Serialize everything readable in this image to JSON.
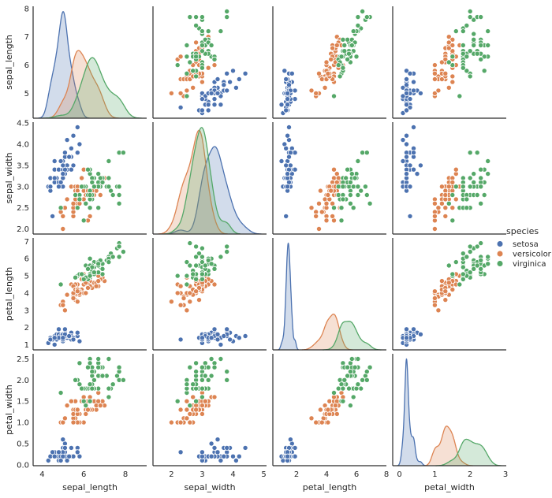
{
  "chart_data": {
    "type": "scatter",
    "variant": "pairplot",
    "diagonal": "kde",
    "grid": "off",
    "background": "#ffffff",
    "spine_color": "#2b2b2b",
    "variables": [
      {
        "key": "sepal_length",
        "label": "sepal_length",
        "xlim": [
          3.57,
          9.02
        ],
        "ylim": [
          4.12,
          8.08
        ],
        "xticks": [
          "4",
          "6",
          "8"
        ],
        "yticks": [
          "5",
          "6",
          "7",
          "8"
        ]
      },
      {
        "key": "sepal_width",
        "label": "sepal_width",
        "xlim": [
          1.4,
          5.09
        ],
        "ylim": [
          1.88,
          4.52
        ],
        "xticks": [
          "2",
          "3",
          "4",
          "5"
        ],
        "yticks": [
          "2.0",
          "2.5",
          "3.0",
          "3.5",
          "4.0",
          "4.5"
        ]
      },
      {
        "key": "petal_length",
        "label": "petal_length",
        "xlim": [
          0.42,
          8.0
        ],
        "ylim": [
          0.7,
          7.2
        ],
        "xticks": [
          "2",
          "4",
          "6",
          "8"
        ],
        "yticks": [
          "1",
          "2",
          "3",
          "4",
          "5",
          "6",
          "7"
        ]
      },
      {
        "key": "petal_width",
        "label": "petal_width",
        "xlim": [
          -0.19,
          3.02
        ],
        "ylim": [
          -0.02,
          2.62
        ],
        "xticks": [
          "0",
          "1",
          "2",
          "3"
        ],
        "yticks": [
          "0.0",
          "0.5",
          "1.0",
          "1.5",
          "2.0",
          "2.5"
        ]
      }
    ],
    "legend": {
      "title": "species",
      "position": "right",
      "entries": [
        {
          "label": "setosa",
          "color": "#4c72b0"
        },
        {
          "label": "versicolor",
          "color": "#dd8452"
        },
        {
          "label": "virginica",
          "color": "#55a868"
        }
      ]
    },
    "series": [
      {
        "name": "setosa",
        "color": "#4c72b0",
        "rows": [
          [
            5.1,
            3.5,
            1.4,
            0.2
          ],
          [
            4.9,
            3.0,
            1.4,
            0.2
          ],
          [
            4.7,
            3.2,
            1.3,
            0.2
          ],
          [
            4.6,
            3.1,
            1.5,
            0.2
          ],
          [
            5.0,
            3.6,
            1.4,
            0.2
          ],
          [
            5.4,
            3.9,
            1.7,
            0.4
          ],
          [
            4.6,
            3.4,
            1.4,
            0.3
          ],
          [
            5.0,
            3.4,
            1.5,
            0.2
          ],
          [
            4.4,
            2.9,
            1.4,
            0.2
          ],
          [
            4.9,
            3.1,
            1.5,
            0.1
          ],
          [
            5.4,
            3.7,
            1.5,
            0.2
          ],
          [
            4.8,
            3.4,
            1.6,
            0.2
          ],
          [
            4.8,
            3.0,
            1.4,
            0.1
          ],
          [
            4.3,
            3.0,
            1.1,
            0.1
          ],
          [
            5.8,
            4.0,
            1.2,
            0.2
          ],
          [
            5.7,
            4.4,
            1.5,
            0.4
          ],
          [
            5.4,
            3.9,
            1.3,
            0.4
          ],
          [
            5.1,
            3.5,
            1.4,
            0.3
          ],
          [
            5.7,
            3.8,
            1.7,
            0.3
          ],
          [
            5.1,
            3.8,
            1.5,
            0.3
          ],
          [
            5.4,
            3.4,
            1.7,
            0.2
          ],
          [
            5.1,
            3.7,
            1.5,
            0.4
          ],
          [
            4.6,
            3.6,
            1.0,
            0.2
          ],
          [
            5.1,
            3.3,
            1.7,
            0.5
          ],
          [
            4.8,
            3.4,
            1.9,
            0.2
          ],
          [
            5.0,
            3.0,
            1.6,
            0.2
          ],
          [
            5.0,
            3.4,
            1.6,
            0.4
          ],
          [
            5.2,
            3.5,
            1.5,
            0.2
          ],
          [
            5.2,
            3.4,
            1.4,
            0.2
          ],
          [
            4.7,
            3.2,
            1.6,
            0.2
          ],
          [
            4.8,
            3.1,
            1.6,
            0.2
          ],
          [
            5.4,
            3.4,
            1.5,
            0.4
          ],
          [
            5.2,
            4.1,
            1.5,
            0.1
          ],
          [
            5.5,
            4.2,
            1.4,
            0.2
          ],
          [
            4.9,
            3.1,
            1.5,
            0.2
          ],
          [
            5.0,
            3.2,
            1.2,
            0.2
          ],
          [
            5.5,
            3.5,
            1.3,
            0.2
          ],
          [
            4.9,
            3.6,
            1.4,
            0.1
          ],
          [
            4.4,
            3.0,
            1.3,
            0.2
          ],
          [
            5.1,
            3.4,
            1.5,
            0.2
          ],
          [
            5.0,
            3.5,
            1.3,
            0.3
          ],
          [
            4.5,
            2.3,
            1.3,
            0.3
          ],
          [
            4.4,
            3.2,
            1.3,
            0.2
          ],
          [
            5.0,
            3.5,
            1.6,
            0.6
          ],
          [
            5.1,
            3.8,
            1.9,
            0.4
          ],
          [
            4.8,
            3.0,
            1.4,
            0.3
          ],
          [
            5.1,
            3.8,
            1.6,
            0.2
          ],
          [
            4.6,
            3.2,
            1.4,
            0.2
          ],
          [
            5.3,
            3.7,
            1.5,
            0.2
          ],
          [
            5.0,
            3.3,
            1.4,
            0.2
          ]
        ]
      },
      {
        "name": "versicolor",
        "color": "#dd8452",
        "rows": [
          [
            7.0,
            3.2,
            4.7,
            1.4
          ],
          [
            6.4,
            3.2,
            4.5,
            1.5
          ],
          [
            6.9,
            3.1,
            4.9,
            1.5
          ],
          [
            5.5,
            2.3,
            4.0,
            1.3
          ],
          [
            6.5,
            2.8,
            4.6,
            1.5
          ],
          [
            5.7,
            2.8,
            4.5,
            1.3
          ],
          [
            6.3,
            3.3,
            4.7,
            1.6
          ],
          [
            4.9,
            2.4,
            3.3,
            1.0
          ],
          [
            6.6,
            2.9,
            4.6,
            1.3
          ],
          [
            5.2,
            2.7,
            3.9,
            1.4
          ],
          [
            5.0,
            2.0,
            3.5,
            1.0
          ],
          [
            5.9,
            3.0,
            4.2,
            1.5
          ],
          [
            6.0,
            2.2,
            4.0,
            1.0
          ],
          [
            6.1,
            2.9,
            4.7,
            1.4
          ],
          [
            5.6,
            2.9,
            3.6,
            1.3
          ],
          [
            6.7,
            3.1,
            4.4,
            1.4
          ],
          [
            5.6,
            3.0,
            4.5,
            1.5
          ],
          [
            5.8,
            2.7,
            4.1,
            1.0
          ],
          [
            6.2,
            2.2,
            4.5,
            1.5
          ],
          [
            5.6,
            2.5,
            3.9,
            1.1
          ],
          [
            5.9,
            3.2,
            4.8,
            1.8
          ],
          [
            6.1,
            2.8,
            4.0,
            1.3
          ],
          [
            6.3,
            2.5,
            4.9,
            1.5
          ],
          [
            6.1,
            2.8,
            4.7,
            1.2
          ],
          [
            6.4,
            2.9,
            4.3,
            1.3
          ],
          [
            6.6,
            3.0,
            4.4,
            1.4
          ],
          [
            6.8,
            2.8,
            4.8,
            1.4
          ],
          [
            6.7,
            3.0,
            5.0,
            1.7
          ],
          [
            6.0,
            2.9,
            4.5,
            1.5
          ],
          [
            5.7,
            2.6,
            3.5,
            1.0
          ],
          [
            5.5,
            2.4,
            3.8,
            1.1
          ],
          [
            5.5,
            2.4,
            3.7,
            1.0
          ],
          [
            5.8,
            2.7,
            3.9,
            1.2
          ],
          [
            6.0,
            2.7,
            5.1,
            1.6
          ],
          [
            5.4,
            3.0,
            4.5,
            1.5
          ],
          [
            6.0,
            3.4,
            4.5,
            1.6
          ],
          [
            6.7,
            3.1,
            4.7,
            1.5
          ],
          [
            6.3,
            2.3,
            4.4,
            1.3
          ],
          [
            5.6,
            3.0,
            4.1,
            1.3
          ],
          [
            5.5,
            2.5,
            4.0,
            1.3
          ],
          [
            5.5,
            2.6,
            4.4,
            1.2
          ],
          [
            6.1,
            3.0,
            4.6,
            1.4
          ],
          [
            5.8,
            2.6,
            4.0,
            1.2
          ],
          [
            5.0,
            2.3,
            3.3,
            1.0
          ],
          [
            5.6,
            2.7,
            4.2,
            1.3
          ],
          [
            5.7,
            3.0,
            4.2,
            1.2
          ],
          [
            5.7,
            2.9,
            4.2,
            1.3
          ],
          [
            6.2,
            2.9,
            4.3,
            1.3
          ],
          [
            5.1,
            2.5,
            3.0,
            1.1
          ],
          [
            5.7,
            2.8,
            4.1,
            1.3
          ]
        ]
      },
      {
        "name": "virginica",
        "color": "#55a868",
        "rows": [
          [
            6.3,
            3.3,
            6.0,
            2.5
          ],
          [
            5.8,
            2.7,
            5.1,
            1.9
          ],
          [
            7.1,
            3.0,
            5.9,
            2.1
          ],
          [
            6.3,
            2.9,
            5.6,
            1.8
          ],
          [
            6.5,
            3.0,
            5.8,
            2.2
          ],
          [
            7.6,
            3.0,
            6.6,
            2.1
          ],
          [
            4.9,
            2.5,
            4.5,
            1.7
          ],
          [
            7.3,
            2.9,
            6.3,
            1.8
          ],
          [
            6.7,
            2.5,
            5.8,
            1.8
          ],
          [
            7.2,
            3.6,
            6.1,
            2.5
          ],
          [
            6.5,
            3.2,
            5.1,
            2.0
          ],
          [
            6.4,
            2.7,
            5.3,
            1.9
          ],
          [
            6.8,
            3.0,
            5.5,
            2.1
          ],
          [
            5.7,
            2.5,
            5.0,
            2.0
          ],
          [
            5.8,
            2.8,
            5.1,
            2.4
          ],
          [
            6.4,
            3.2,
            5.3,
            2.3
          ],
          [
            6.5,
            3.0,
            5.5,
            1.8
          ],
          [
            7.7,
            3.8,
            6.7,
            2.2
          ],
          [
            7.7,
            2.6,
            6.9,
            2.3
          ],
          [
            6.0,
            2.2,
            5.0,
            1.5
          ],
          [
            6.9,
            3.2,
            5.7,
            2.3
          ],
          [
            5.6,
            2.8,
            4.9,
            2.0
          ],
          [
            7.7,
            2.8,
            6.7,
            2.0
          ],
          [
            6.3,
            2.7,
            4.9,
            1.8
          ],
          [
            6.7,
            3.3,
            5.7,
            2.1
          ],
          [
            7.2,
            3.2,
            6.0,
            1.8
          ],
          [
            6.2,
            2.8,
            4.8,
            1.8
          ],
          [
            6.1,
            3.0,
            4.9,
            1.8
          ],
          [
            6.4,
            2.8,
            5.6,
            2.1
          ],
          [
            7.2,
            3.0,
            5.8,
            1.6
          ],
          [
            7.4,
            2.8,
            6.1,
            1.9
          ],
          [
            7.9,
            3.8,
            6.4,
            2.0
          ],
          [
            6.4,
            2.8,
            5.6,
            2.2
          ],
          [
            6.3,
            2.8,
            5.1,
            1.5
          ],
          [
            6.1,
            2.6,
            5.6,
            1.4
          ],
          [
            7.7,
            3.0,
            6.1,
            2.3
          ],
          [
            6.3,
            3.4,
            5.6,
            2.4
          ],
          [
            6.4,
            3.1,
            5.5,
            1.8
          ],
          [
            6.0,
            3.0,
            4.8,
            1.8
          ],
          [
            6.9,
            3.1,
            5.4,
            2.1
          ],
          [
            6.7,
            3.1,
            5.6,
            2.4
          ],
          [
            6.9,
            3.1,
            5.1,
            2.3
          ],
          [
            5.8,
            2.7,
            5.1,
            1.9
          ],
          [
            6.8,
            3.2,
            5.9,
            2.3
          ],
          [
            6.7,
            3.3,
            5.7,
            2.5
          ],
          [
            6.7,
            3.0,
            5.2,
            2.3
          ],
          [
            6.3,
            2.5,
            5.0,
            1.9
          ],
          [
            6.5,
            3.0,
            5.2,
            2.0
          ],
          [
            6.2,
            3.4,
            5.4,
            2.3
          ],
          [
            5.9,
            3.0,
            5.1,
            1.8
          ]
        ]
      }
    ]
  }
}
